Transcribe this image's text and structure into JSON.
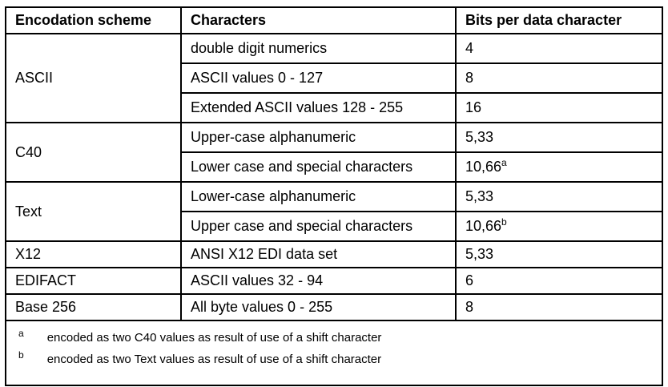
{
  "colors": {
    "border": "#000000",
    "text": "#000000",
    "background": "#ffffff"
  },
  "table": {
    "headers": [
      "Encodation scheme",
      "Characters",
      "Bits per data character"
    ],
    "groups": [
      {
        "scheme": "ASCII",
        "rows": [
          {
            "characters": "double digit numerics",
            "bits": "4",
            "sup": ""
          },
          {
            "characters": "ASCII values 0 - 127",
            "bits": "8",
            "sup": ""
          },
          {
            "characters": "Extended ASCII values 128 - 255",
            "bits": "16",
            "sup": ""
          }
        ]
      },
      {
        "scheme": "C40",
        "rows": [
          {
            "characters": "Upper-case alphanumeric",
            "bits": "5,33",
            "sup": ""
          },
          {
            "characters": "Lower case and special characters",
            "bits": "10,66",
            "sup": "a"
          }
        ]
      },
      {
        "scheme": "Text",
        "rows": [
          {
            "characters": "Lower-case alphanumeric",
            "bits": "5,33",
            "sup": ""
          },
          {
            "characters": "Upper case and special characters",
            "bits": "10,66",
            "sup": "b"
          }
        ]
      },
      {
        "scheme": "X12",
        "rows": [
          {
            "characters": "ANSI X12 EDI data set",
            "bits": "5,33",
            "sup": ""
          }
        ]
      },
      {
        "scheme": "EDIFACT",
        "rows": [
          {
            "characters": "ASCII values 32 - 94",
            "bits": "6",
            "sup": ""
          }
        ]
      },
      {
        "scheme": "Base 256",
        "rows": [
          {
            "characters": "All byte values 0 - 255",
            "bits": "8",
            "sup": ""
          }
        ]
      }
    ],
    "footnotes": [
      {
        "marker": "a",
        "text": "encoded as two C40 values as result of use of a shift character"
      },
      {
        "marker": "b",
        "text": "encoded as two Text values as result of use of a shift character"
      }
    ]
  }
}
